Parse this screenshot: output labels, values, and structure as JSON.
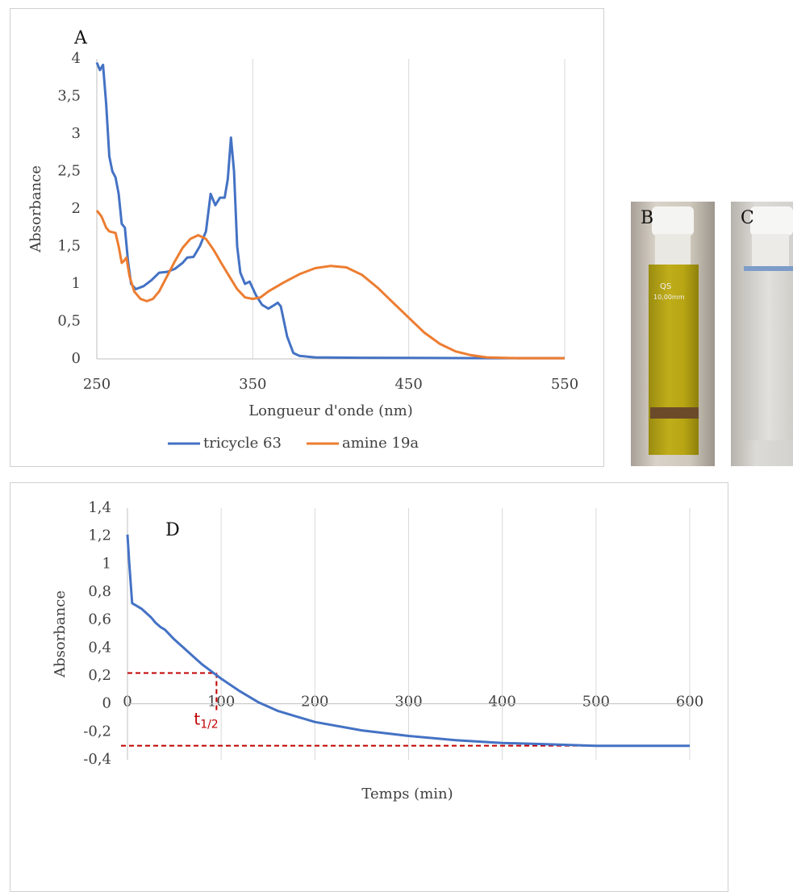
{
  "chart_data": [
    {
      "type": "line",
      "panel": "A",
      "xlabel": "Longueur d'onde (nm)",
      "ylabel": "Absorbance",
      "xlim": [
        250,
        550
      ],
      "xticks": [
        250,
        350,
        450,
        550
      ],
      "ylim": [
        0,
        4
      ],
      "yticks": [
        0,
        {
          "value": 0.5,
          "label": "0,5"
        },
        1,
        {
          "value": 1.5,
          "label": "1,5"
        },
        2,
        {
          "value": 2.5,
          "label": "2,5"
        },
        3,
        {
          "value": 3.5,
          "label": "3,5"
        },
        4
      ],
      "grid": "x",
      "legend": "bottom",
      "series": [
        {
          "name": "tricycle 63",
          "color": "#4472c4",
          "x": [
            250,
            252,
            254,
            256,
            258,
            260,
            262,
            264,
            266,
            268,
            270,
            272,
            275,
            280,
            285,
            290,
            295,
            300,
            305,
            308,
            312,
            316,
            320,
            323,
            326,
            329,
            332,
            334,
            336,
            338,
            340,
            342,
            345,
            348,
            352,
            356,
            360,
            364,
            366,
            368,
            372,
            376,
            380,
            390,
            420,
            500,
            550
          ],
          "values": [
            3.95,
            3.85,
            3.92,
            3.4,
            2.7,
            2.5,
            2.42,
            2.2,
            1.8,
            1.75,
            1.3,
            1.0,
            0.93,
            0.97,
            1.05,
            1.15,
            1.16,
            1.2,
            1.28,
            1.35,
            1.36,
            1.5,
            1.7,
            2.2,
            2.05,
            2.15,
            2.15,
            2.4,
            2.95,
            2.5,
            1.5,
            1.15,
            1.0,
            1.03,
            0.85,
            0.72,
            0.67,
            0.72,
            0.75,
            0.7,
            0.3,
            0.08,
            0.04,
            0.02,
            0.015,
            0.01,
            0.01
          ]
        },
        {
          "name": "amine 19a",
          "color": "#ed7d31",
          "x": [
            250,
            253,
            256,
            258,
            262,
            264,
            266,
            268,
            269,
            271,
            274,
            278,
            282,
            286,
            290,
            295,
            300,
            305,
            310,
            315,
            320,
            325,
            330,
            335,
            340,
            345,
            350,
            355,
            360,
            370,
            380,
            390,
            400,
            410,
            420,
            430,
            440,
            450,
            460,
            470,
            480,
            490,
            500,
            520,
            550
          ],
          "values": [
            1.98,
            1.9,
            1.75,
            1.7,
            1.68,
            1.5,
            1.28,
            1.32,
            1.35,
            1.1,
            0.9,
            0.8,
            0.77,
            0.8,
            0.9,
            1.1,
            1.3,
            1.48,
            1.6,
            1.65,
            1.6,
            1.45,
            1.27,
            1.1,
            0.93,
            0.82,
            0.8,
            0.82,
            0.9,
            1.02,
            1.13,
            1.21,
            1.24,
            1.22,
            1.12,
            0.95,
            0.75,
            0.55,
            0.35,
            0.2,
            0.1,
            0.05,
            0.02,
            0.01,
            0.01
          ]
        }
      ]
    },
    {
      "type": "line",
      "panel": "D",
      "xlabel": "Temps (min)",
      "ylabel": "Absorbance",
      "xlim": [
        0,
        600
      ],
      "xticks": [
        0,
        100,
        200,
        300,
        400,
        500,
        600
      ],
      "ylim": [
        -0.4,
        1.4
      ],
      "yticks": [
        {
          "value": -0.4,
          "label": "-0,4"
        },
        {
          "value": -0.2,
          "label": "-0,2"
        },
        0,
        {
          "value": 0.2,
          "label": "0,2"
        },
        {
          "value": 0.4,
          "label": "0,4"
        },
        {
          "value": 0.6,
          "label": "0,6"
        },
        {
          "value": 0.8,
          "label": "0,8"
        },
        1,
        {
          "value": 1.2,
          "label": "1,2"
        },
        {
          "value": 1.4,
          "label": "1,4"
        }
      ],
      "grid": "x",
      "series": [
        {
          "color": "#4472c4",
          "x": [
            0,
            2,
            5,
            10,
            15,
            20,
            25,
            30,
            35,
            40,
            50,
            60,
            70,
            80,
            90,
            100,
            120,
            140,
            160,
            180,
            200,
            250,
            300,
            350,
            400,
            450,
            500,
            550,
            600
          ],
          "values": [
            1.21,
            1.0,
            0.72,
            0.7,
            0.68,
            0.65,
            0.62,
            0.58,
            0.55,
            0.53,
            0.46,
            0.4,
            0.34,
            0.28,
            0.23,
            0.18,
            0.09,
            0.01,
            -0.05,
            -0.09,
            -0.13,
            -0.19,
            -0.23,
            -0.26,
            -0.28,
            -0.29,
            -0.3,
            -0.3,
            -0.3
          ]
        }
      ],
      "reference_color": "#c00000",
      "half_life": {
        "x": 95,
        "y": 0.22,
        "label": "t",
        "subscript": "1/2"
      },
      "final_level": -0.3
    }
  ],
  "photos": [
    {
      "label": "B",
      "cap_text": "QS",
      "scale_text": "10,00mm"
    },
    {
      "label": "C"
    }
  ]
}
